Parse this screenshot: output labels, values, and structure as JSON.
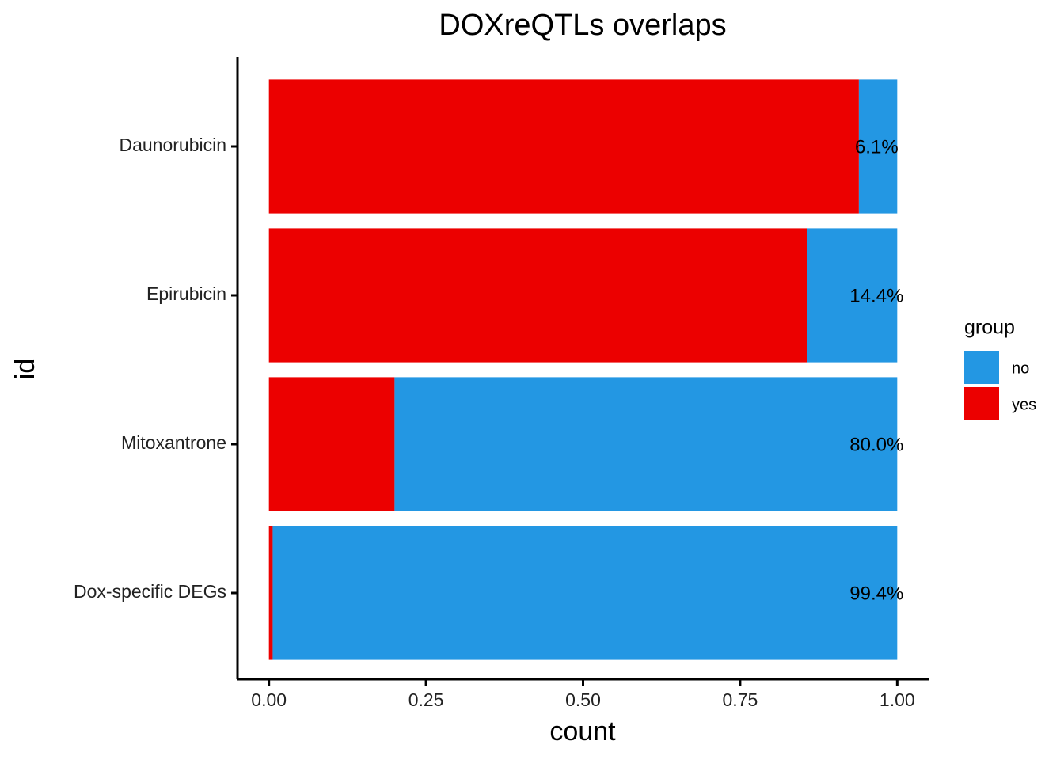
{
  "chart_data": {
    "type": "bar",
    "orientation": "horizontal",
    "stacked": true,
    "title": "DOXreQTLs overlaps",
    "x_label": "count",
    "y_label": "id",
    "legend_title": "group",
    "legend": "right",
    "categories": [
      "Daunorubicin",
      "Epirubicin",
      "Mitoxantrone",
      "Dox-specific DEGs"
    ],
    "series": [
      {
        "name": "no",
        "color": "#2397e3",
        "values": [
          0.061,
          0.144,
          0.8,
          0.994
        ],
        "value_labels": [
          "6.1%",
          "14.4%",
          "80.0%",
          "99.4%"
        ]
      },
      {
        "name": "yes",
        "color": "#ec0000",
        "values": [
          0.939,
          0.856,
          0.2,
          0.006
        ]
      }
    ],
    "xlim": [
      -0.05,
      1.05
    ],
    "xticks": [
      {
        "value": 0,
        "label": "0.00"
      },
      {
        "value": 0.25,
        "label": "0.25"
      },
      {
        "value": 0.5,
        "label": "0.50"
      },
      {
        "value": 0.75,
        "label": "0.75"
      },
      {
        "value": 1,
        "label": "1.00"
      }
    ],
    "grid": false
  }
}
